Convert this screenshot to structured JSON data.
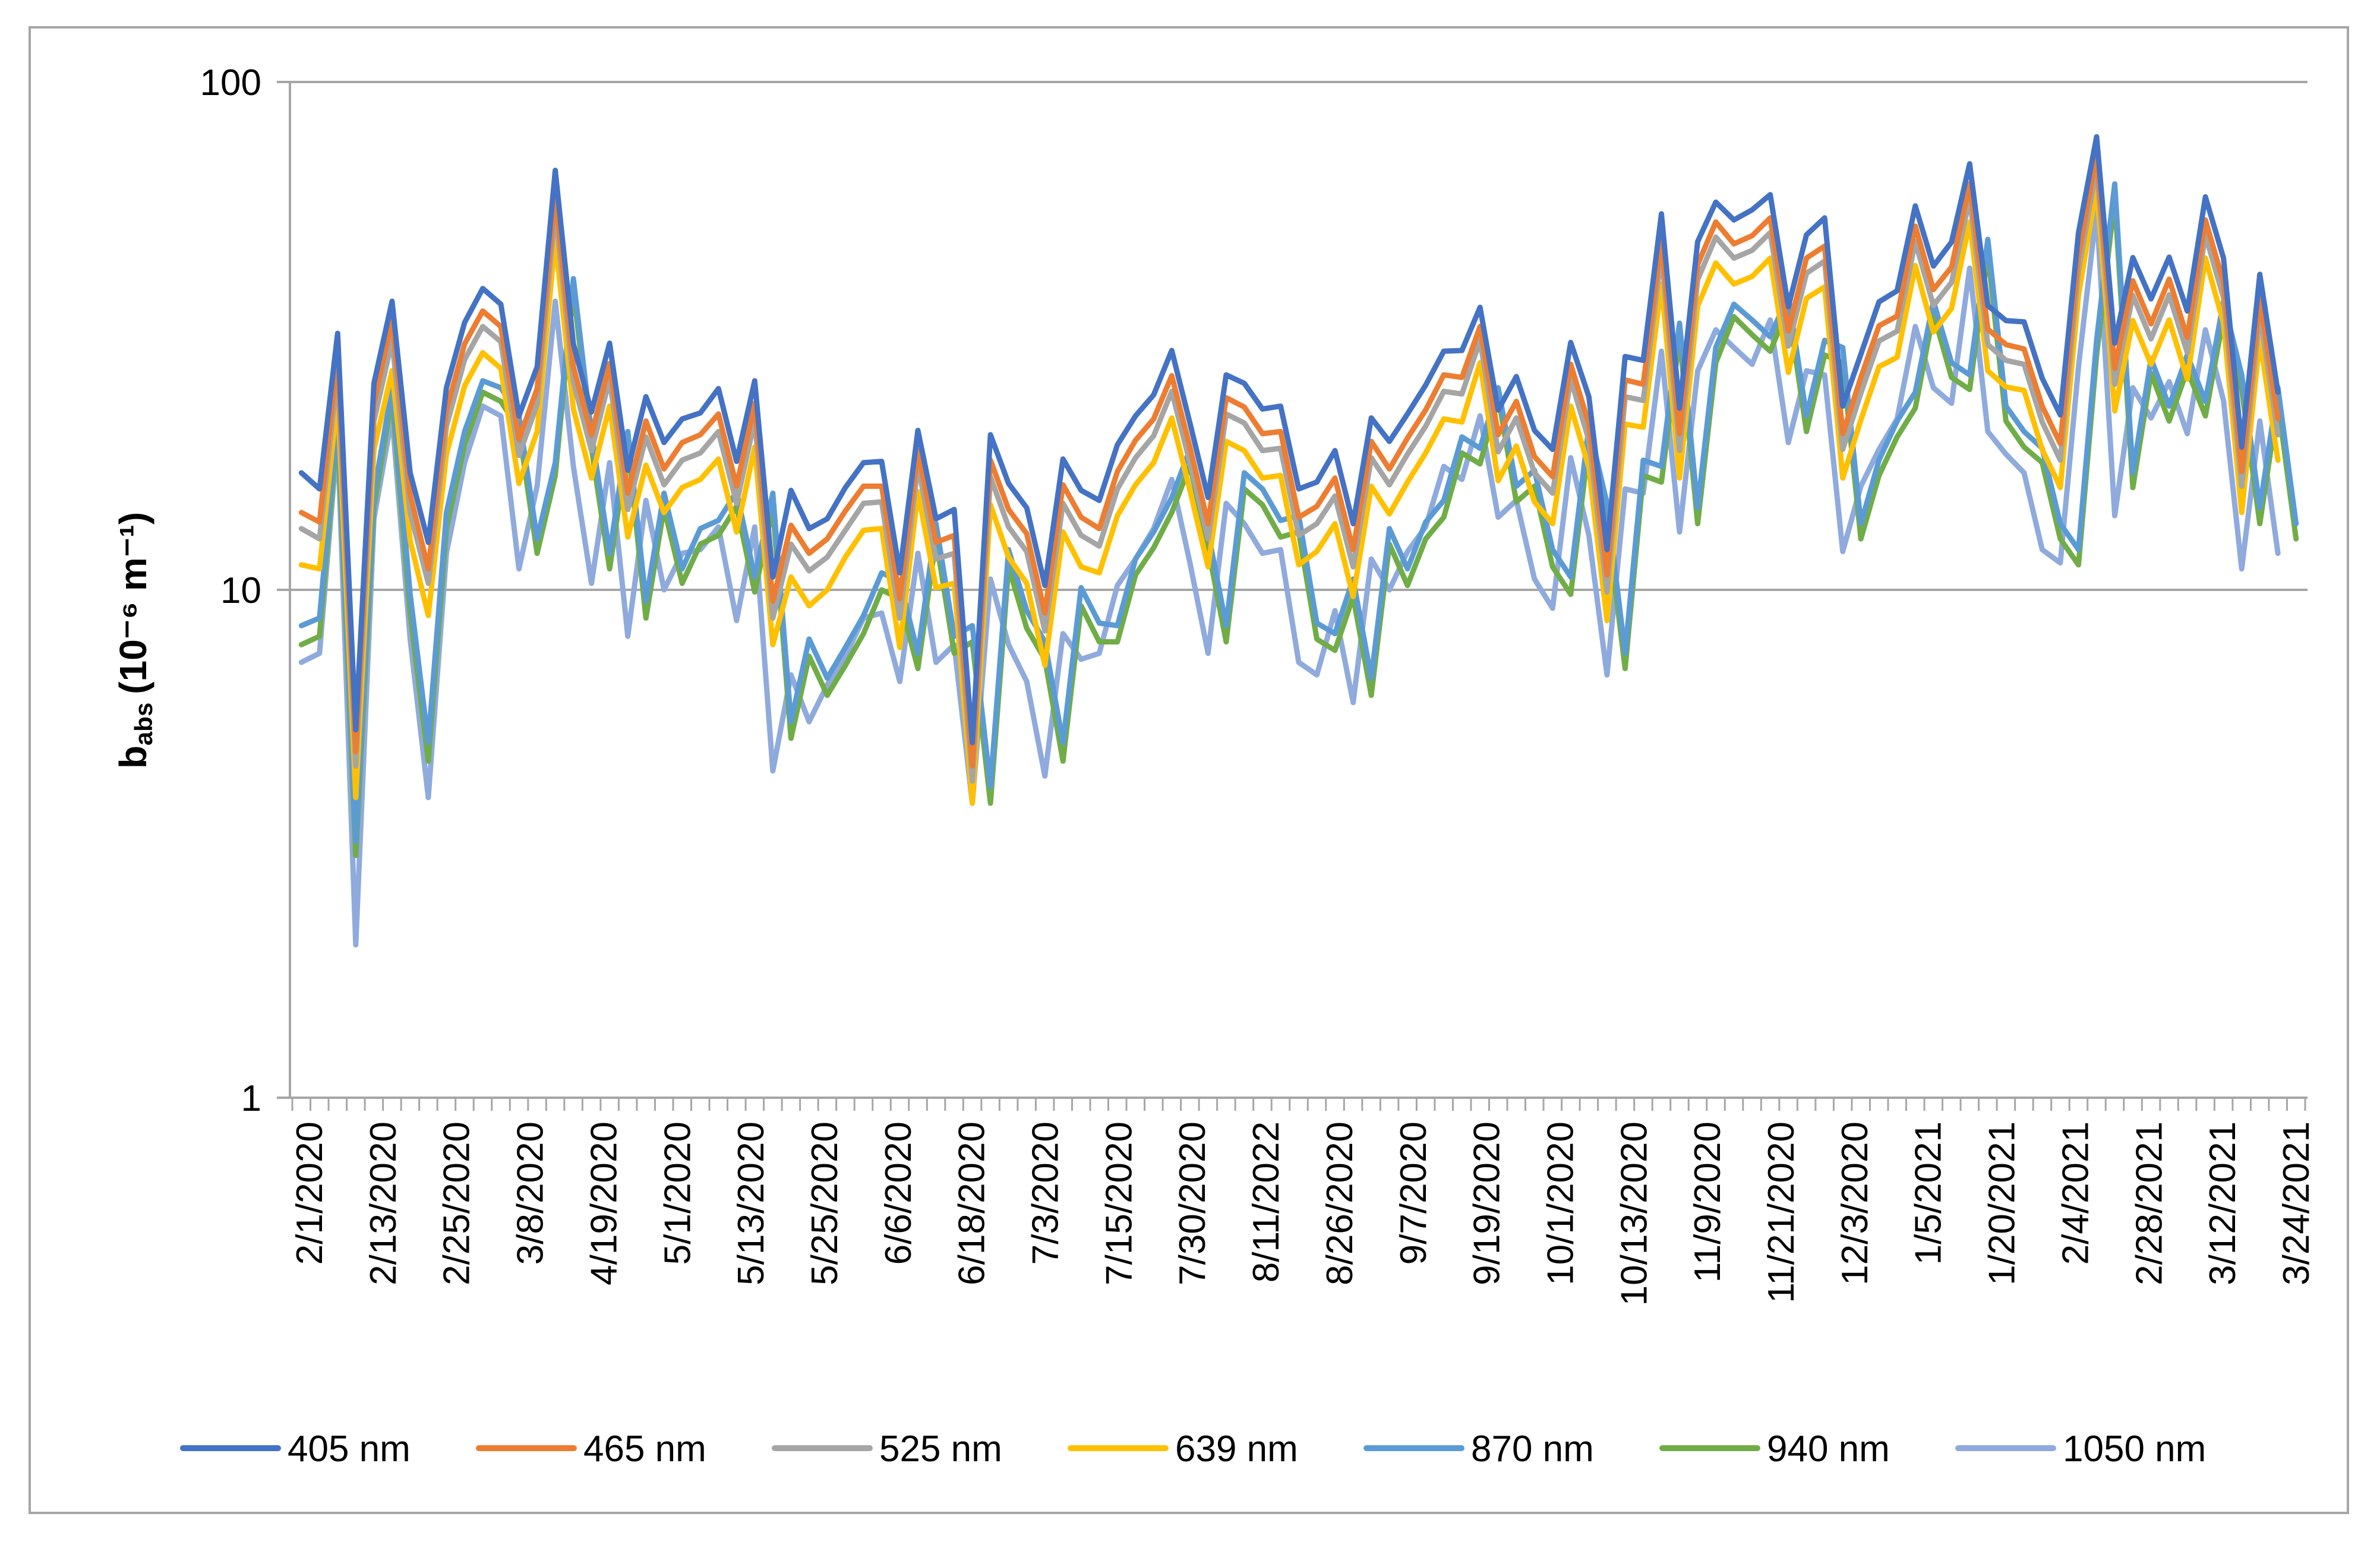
{
  "chart_data": {
    "type": "line",
    "y_scale": "log",
    "ylabel": {
      "main": "b",
      "sub": "abs",
      "unit": "(10⁻⁶ m⁻¹)"
    },
    "ylim": [
      1,
      100
    ],
    "y_ticks": [
      {
        "value": 1,
        "label": "1"
      },
      {
        "value": 10,
        "label": "10"
      },
      {
        "value": 100,
        "label": "100"
      }
    ],
    "grid": true,
    "legend_position": "bottom",
    "x_tick_labels": [
      "2/1/2020",
      "2/13/2020",
      "2/25/2020",
      "3/8/2020",
      "4/19/2020",
      "5/1/2020",
      "5/13/2020",
      "5/25/2020",
      "6/6/2020",
      "6/18/2020",
      "7/3/2020",
      "7/15/2020",
      "7/30/2020",
      "8/11/2022",
      "8/26/2020",
      "9/7/2020",
      "9/19/2020",
      "10/1/2020",
      "10/13/2020",
      "11/9/2020",
      "11/21/2020",
      "12/3/2020",
      "1/5/2021",
      "1/20/2021",
      "2/4/2021",
      "2/28/2021",
      "3/12/2021",
      "3/24/2021"
    ],
    "x_count": 111,
    "series": [
      {
        "name": "405 nm",
        "color": "#4472c4",
        "values": [
          17.0,
          15.8,
          32,
          5.3,
          25.5,
          37,
          17,
          12.4,
          25.0,
          33.6,
          39.2,
          36.5,
          22,
          27.5,
          67,
          30.5,
          22.4,
          30.6,
          17.2,
          24.0,
          19.5,
          21.7,
          22.3,
          24.9,
          17.9,
          25.8,
          10.6,
          15.7,
          13.2,
          13.8,
          15.9,
          17.8,
          17.9,
          10.8,
          20.6,
          13.8,
          14.4,
          5.0,
          20.2,
          16.2,
          14.5,
          10.2,
          18.1,
          15.7,
          15.0,
          19.3,
          22.0,
          24.2,
          29.6,
          21.3,
          15.2,
          26.5,
          25.5,
          22.7,
          23.0,
          15.8,
          16.3,
          18.8,
          13.5,
          21.8,
          19.6,
          22.2,
          25.3,
          29.5,
          29.6,
          36,
          22.6,
          26.3,
          20.6,
          18.9,
          30.7,
          24.0,
          12.0,
          28.8,
          28.3,
          55,
          22.8,
          48.5,
          58,
          53.5,
          56,
          60,
          36.1,
          50.0,
          54,
          23.0,
          29.1,
          36.9,
          38.8,
          57,
          43.4,
          48.4,
          69,
          36.3,
          33.9,
          33.7,
          26.1,
          22.1,
          50.5,
          78,
          30.6,
          45.1,
          37.4,
          45.2,
          35.4,
          59.4,
          45.0,
          19.1,
          41.8,
          24.5
        ]
      },
      {
        "name": "465 nm",
        "color": "#ed7d31",
        "values": [
          14.2,
          13.6,
          29,
          4.8,
          23.3,
          34,
          15.4,
          11.0,
          22.6,
          30.5,
          35.4,
          33.0,
          19.8,
          24.9,
          60,
          27.5,
          20.2,
          27.9,
          15.5,
          21.5,
          17.3,
          19.5,
          20.2,
          22.2,
          16.0,
          23.3,
          9.5,
          13.4,
          11.8,
          12.6,
          14.3,
          16.0,
          16.0,
          9.6,
          18.8,
          12.4,
          12.8,
          4.5,
          18.0,
          14.4,
          12.9,
          9.0,
          16.1,
          13.9,
          13.2,
          17.1,
          19.7,
          21.7,
          26.4,
          19.1,
          13.5,
          23.9,
          22.9,
          20.3,
          20.5,
          13.9,
          14.6,
          16.6,
          12.0,
          19.6,
          17.3,
          19.9,
          22.6,
          26.5,
          26.2,
          33,
          20.2,
          23.5,
          18.3,
          16.7,
          27.8,
          21.2,
          10.7,
          25.9,
          25.4,
          49,
          20.3,
          43.7,
          53,
          48.0,
          49.8,
          54,
          32.3,
          45.0,
          47.5,
          20.3,
          26.2,
          33.1,
          34.6,
          52,
          39.0,
          43.2,
          63,
          32.6,
          30.4,
          29.8,
          23.0,
          19.4,
          45.5,
          72,
          27.3,
          40.6,
          33.4,
          40.9,
          31.4,
          53.5,
          40.3,
          17.1,
          37.5,
          21.7
        ]
      },
      {
        "name": "525 nm",
        "color": "#a5a5a5",
        "values": [
          13.2,
          12.6,
          27,
          4.5,
          21.5,
          31,
          14.2,
          10.3,
          21.0,
          28.4,
          33.0,
          30.8,
          18.4,
          23.2,
          56,
          25.7,
          18.8,
          26.0,
          14.4,
          20.0,
          16.1,
          18.0,
          18.6,
          20.5,
          14.8,
          21.6,
          8.8,
          12.3,
          10.9,
          11.6,
          13.1,
          14.8,
          14.9,
          8.8,
          17.6,
          11.5,
          11.8,
          4.2,
          16.7,
          13.3,
          11.9,
          8.3,
          14.8,
          12.8,
          12.2,
          15.8,
          18.2,
          20.1,
          24.6,
          17.8,
          12.6,
          22.2,
          21.3,
          18.8,
          19.0,
          12.8,
          13.5,
          15.3,
          11.1,
          18.2,
          16.1,
          18.5,
          21.0,
          24.6,
          24.3,
          31,
          18.7,
          21.8,
          17.0,
          15.5,
          26.0,
          19.7,
          9.9,
          24.0,
          23.6,
          46,
          18.8,
          40.8,
          49.5,
          45.0,
          46.6,
          50.5,
          30.2,
          42.0,
          44.4,
          18.9,
          24.4,
          30.9,
          32.3,
          48.5,
          36.3,
          40.3,
          59,
          30.4,
          28.3,
          27.8,
          21.4,
          18.0,
          42.5,
          68,
          25.4,
          38.0,
          31.2,
          38.1,
          29.3,
          50.0,
          37.6,
          16.0,
          35.0,
          20.2
        ]
      },
      {
        "name": "639 nm",
        "color": "#ffc000",
        "values": [
          11.2,
          11.0,
          24,
          3.9,
          18.9,
          27,
          12.5,
          8.9,
          18.5,
          25.2,
          29.3,
          27.3,
          16.2,
          20.5,
          49,
          22.7,
          16.6,
          23.0,
          12.7,
          17.6,
          14.2,
          15.9,
          16.5,
          18.1,
          13.0,
          19.1,
          7.8,
          10.6,
          9.3,
          10.0,
          11.6,
          13.1,
          13.2,
          7.7,
          15.6,
          10.1,
          10.3,
          3.8,
          14.7,
          11.6,
          10.3,
          7.1,
          13.0,
          11.1,
          10.8,
          14.0,
          16.1,
          17.8,
          21.8,
          15.7,
          11.1,
          19.6,
          18.8,
          16.6,
          16.8,
          11.2,
          11.9,
          13.5,
          9.7,
          16.0,
          14.1,
          16.3,
          18.6,
          21.7,
          21.4,
          28,
          16.4,
          19.2,
          14.9,
          13.5,
          23.0,
          17.4,
          8.7,
          21.2,
          20.9,
          40,
          16.6,
          36.2,
          44.0,
          40.0,
          41.4,
          45,
          26.8,
          37.5,
          39.5,
          16.6,
          21.6,
          27.5,
          28.7,
          43.5,
          32.2,
          35.8,
          53,
          27.0,
          25.1,
          24.7,
          18.9,
          15.9,
          38.0,
          62,
          22.5,
          33.9,
          27.8,
          34.0,
          26.0,
          45.0,
          33.5,
          14.2,
          31.2,
          18.0
        ]
      },
      {
        "name": "870 nm",
        "color": "#5b9bd5",
        "values": [
          8.5,
          8.8,
          22,
          3.2,
          15.5,
          25,
          9.8,
          5.0,
          14.2,
          20.5,
          25.8,
          25.0,
          22.0,
          12.6,
          17.8,
          41,
          20.3,
          11.8,
          20.5,
          9.5,
          15.5,
          11.0,
          13.2,
          13.7,
          15.6,
          10.6,
          15.5,
          5.5,
          8.0,
          6.7,
          7.7,
          8.9,
          10.8,
          10.4,
          7.5,
          13.5,
          8.1,
          8.5,
          4.1,
          12.0,
          9.1,
          7.9,
          5.0,
          10.1,
          8.6,
          8.5,
          11.5,
          13.0,
          15.2,
          18.9,
          13.0,
          8.5,
          17.0,
          15.8,
          13.7,
          14.0,
          8.6,
          8.2,
          10.5,
          6.7,
          13.2,
          11.0,
          13.6,
          15.0,
          20.0,
          19.0,
          25,
          16.0,
          17.2,
          12.0,
          10.6,
          21.0,
          14.8,
          7.5,
          18.0,
          17.5,
          33.5,
          14.5,
          30.0,
          36.5,
          34.0,
          31.5,
          38,
          22.0,
          31.0,
          30.0,
          13.5,
          18.0,
          21.5,
          24.5,
          37,
          28.0,
          26.5,
          49,
          23.0,
          20.5,
          19.0,
          13.5,
          12.0,
          31.0,
          63,
          17.0,
          28.5,
          23.0,
          29.0,
          23.5,
          37,
          26.5,
          14.5,
          25.0,
          13.5
        ]
      },
      {
        "name": "940 nm",
        "color": "#70ad47",
        "values": [
          7.8,
          8.1,
          21,
          3.0,
          14.6,
          24,
          9.0,
          4.6,
          13.2,
          19.3,
          24.5,
          23.5,
          20.7,
          11.8,
          16.8,
          39,
          19.0,
          11.0,
          19.3,
          8.8,
          14.5,
          10.3,
          12.3,
          12.8,
          14.6,
          9.9,
          14.5,
          5.1,
          7.4,
          6.2,
          7.1,
          8.2,
          10.0,
          9.6,
          7.0,
          12.6,
          7.5,
          7.9,
          3.8,
          11.1,
          8.4,
          7.3,
          4.6,
          9.3,
          7.9,
          7.9,
          10.7,
          12.1,
          14.2,
          17.6,
          12.1,
          7.9,
          15.8,
          14.7,
          12.7,
          13.0,
          8.0,
          7.6,
          9.7,
          6.2,
          12.3,
          10.2,
          12.6,
          13.9,
          18.6,
          17.7,
          24,
          14.9,
          16.0,
          11.1,
          9.8,
          19.5,
          13.7,
          7.0,
          16.8,
          16.3,
          31.5,
          13.5,
          28.0,
          34.5,
          31.8,
          29.5,
          36,
          20.5,
          29.0,
          28.0,
          12.6,
          16.8,
          20.0,
          22.8,
          35,
          26.2,
          24.8,
          46,
          21.5,
          19.1,
          17.8,
          12.6,
          11.2,
          29.0,
          59,
          15.9,
          26.7,
          21.5,
          27.1,
          22.0,
          34.5,
          24.8,
          13.5,
          23.4,
          12.6
        ]
      },
      {
        "name": "1050 nm",
        "color": "#8faadc",
        "values": [
          7.2,
          7.5,
          20,
          2.0,
          13.8,
          22,
          8.0,
          3.9,
          11.8,
          17.8,
          23.0,
          22.0,
          11.0,
          16.0,
          37,
          17.5,
          10.3,
          17.8,
          8.1,
          15.0,
          10.0,
          11.8,
          12.0,
          13.3,
          8.7,
          13.3,
          4.4,
          6.8,
          5.5,
          6.5,
          7.4,
          8.8,
          9.0,
          6.6,
          11.8,
          7.2,
          7.8,
          3.8,
          10.5,
          7.8,
          6.6,
          4.3,
          8.2,
          7.3,
          7.5,
          10.2,
          11.5,
          13.2,
          16.5,
          11.3,
          7.5,
          14.8,
          13.5,
          11.8,
          12.0,
          7.2,
          6.8,
          9.1,
          6.0,
          11.5,
          10.0,
          11.9,
          13.3,
          17.5,
          16.5,
          22,
          13.9,
          15.0,
          10.5,
          9.2,
          18.2,
          12.8,
          6.8,
          15.8,
          15.5,
          29.5,
          13.0,
          27.0,
          32.5,
          30.0,
          27.8,
          34,
          19.5,
          27.0,
          26.5,
          11.9,
          16.0,
          18.9,
          21.7,
          33,
          25.0,
          23.3,
          43,
          20.5,
          18.5,
          17.0,
          12.0,
          11.3,
          27.5,
          56,
          14.0,
          25.0,
          21.8,
          25.7,
          20.3,
          32.5,
          23.6,
          11.0,
          21.5,
          11.8
        ]
      }
    ]
  }
}
